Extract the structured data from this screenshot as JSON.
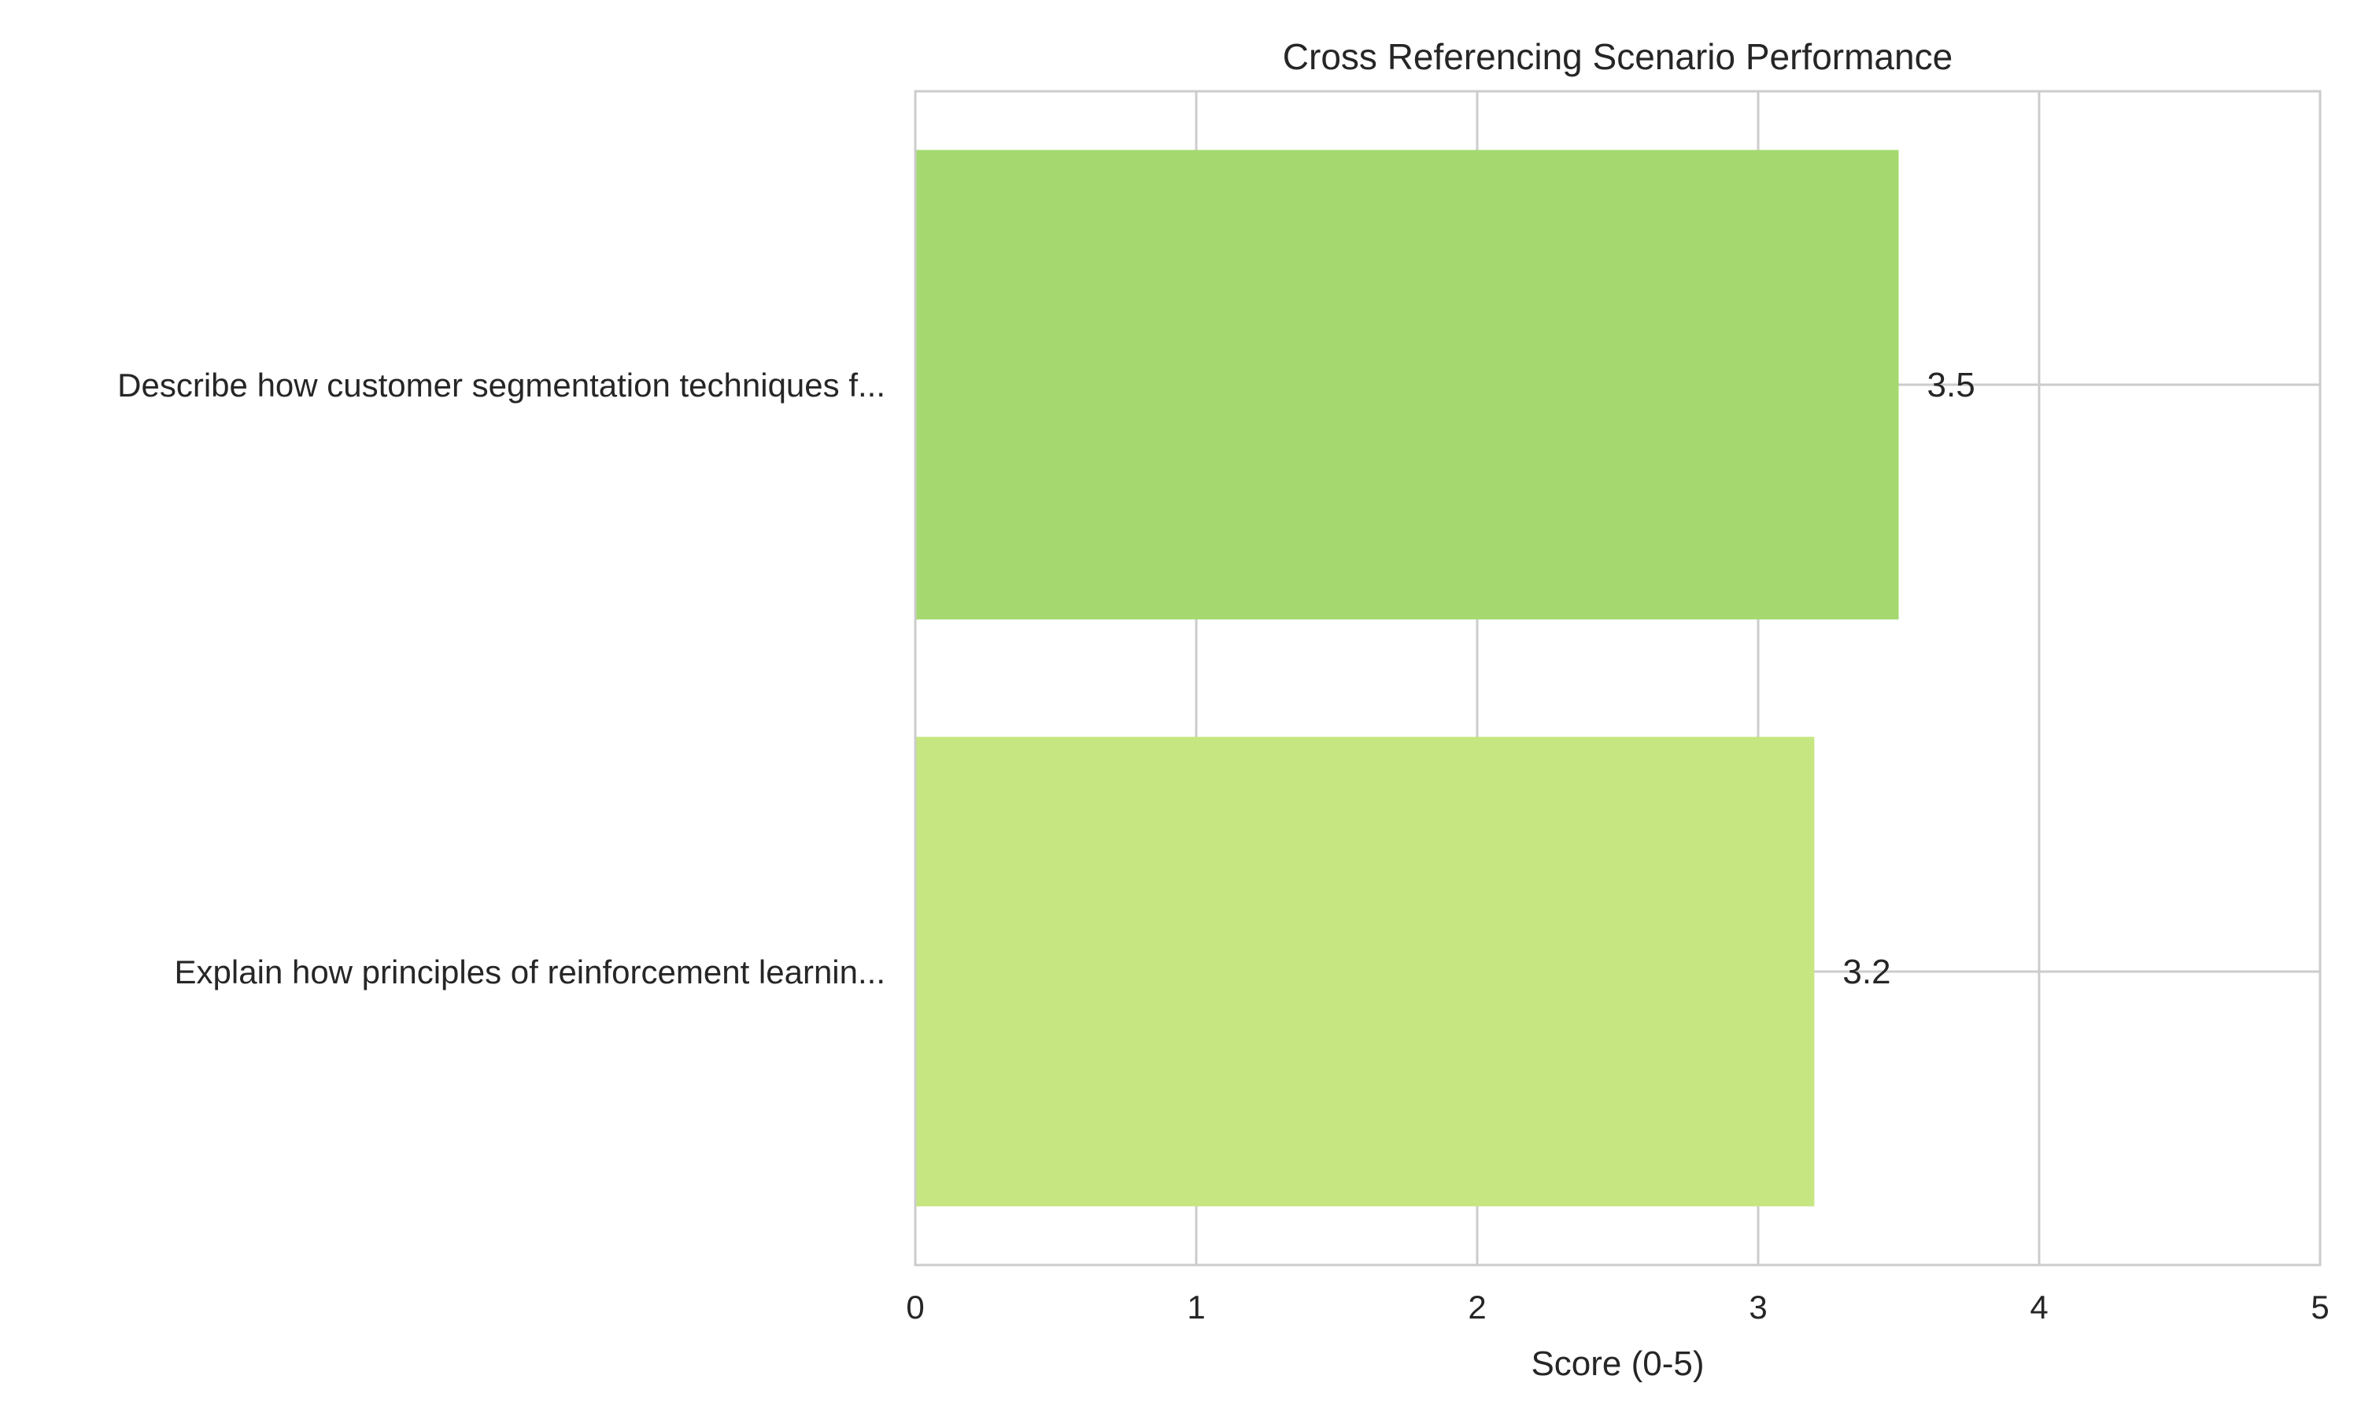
{
  "chart_data": {
    "type": "bar",
    "orientation": "horizontal",
    "title": "Cross Referencing Scenario Performance",
    "xlabel": "Score (0-5)",
    "ylabel": "",
    "xlim": [
      0,
      5
    ],
    "xticks": [
      0,
      1,
      2,
      3,
      4,
      5
    ],
    "grid": true,
    "categories": [
      "Describe how customer segmentation techniques f...",
      "Explain how principles of reinforcement learnin..."
    ],
    "values": [
      3.5,
      3.2
    ],
    "value_labels": [
      "3.5",
      "3.2"
    ],
    "colors": [
      "#a5d96f",
      "#c6e681"
    ]
  }
}
